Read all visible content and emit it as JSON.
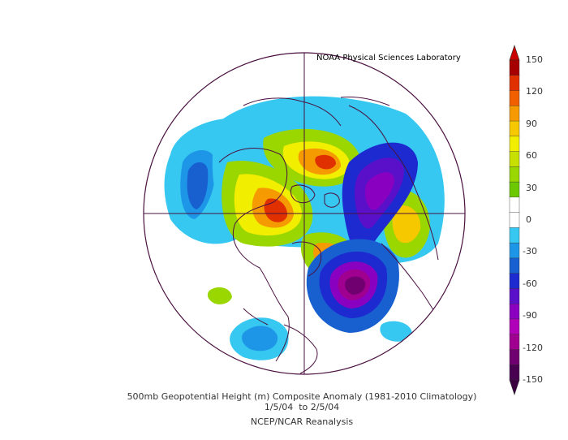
{
  "credit": "NOAA Physical Sciences Laboratory",
  "captions": {
    "line1": "500mb Geopotential Height (m) Composite Anomaly (1981-2010 Climatology)",
    "line2": "1/5/04  to 2/5/04",
    "line3": "NCEP/NCAR Reanalysis"
  },
  "colorbar": {
    "labels": [
      "150",
      "120",
      "90",
      "60",
      "30",
      "0",
      "-30",
      "-60",
      "-90",
      "-120",
      "-150"
    ],
    "colors": [
      "#a60000",
      "#e03000",
      "#f06000",
      "#f59a00",
      "#f5c800",
      "#f2ee00",
      "#c8e000",
      "#9ad600",
      "#6cc800",
      "#ffffff",
      "#ffffff",
      "#36c8f0",
      "#1e96e8",
      "#1860d0",
      "#1c2ad0",
      "#5a10c8",
      "#8a00c0",
      "#b000b8",
      "#a00090",
      "#700070",
      "#4a0050"
    ],
    "top_arrow": "#c80000",
    "bottom_arrow": "#3a0040"
  },
  "anomaly_features": [
    {
      "type": "negative",
      "strength": "strong",
      "region": "western Atlantic / eastern North America"
    },
    {
      "type": "negative",
      "strength": "strong",
      "region": "Scandinavia / northern Europe"
    },
    {
      "type": "positive",
      "strength": "strong",
      "region": "northern Siberia"
    },
    {
      "type": "positive",
      "strength": "strong",
      "region": "North Pacific / Bering"
    },
    {
      "type": "negative",
      "strength": "moderate",
      "region": "central Pacific"
    }
  ]
}
